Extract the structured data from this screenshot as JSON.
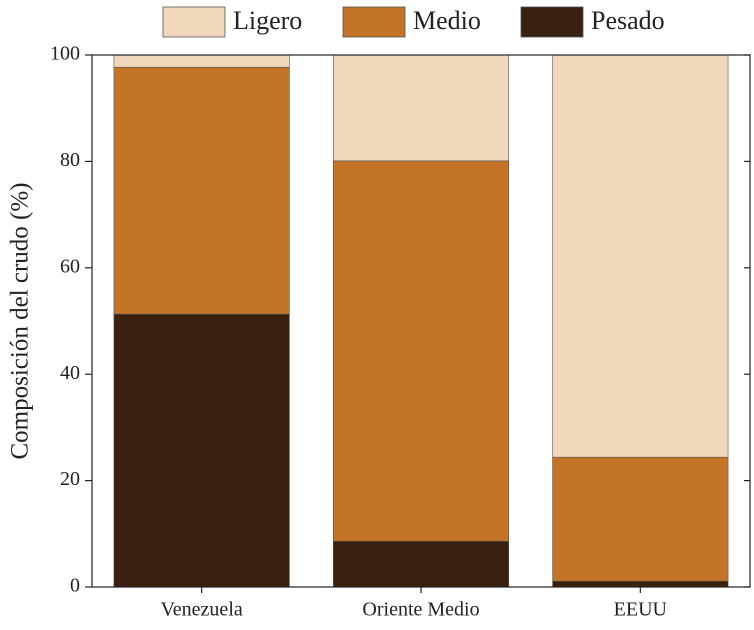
{
  "chart_data": {
    "type": "stacked_bar",
    "y_label": "Composición del crudo (%)",
    "categories": [
      "Venezuela",
      "Oriente Medio",
      "EEUU"
    ],
    "series": [
      {
        "name": "Ligero",
        "color": "#f0d7bc",
        "values": [
          2.3,
          19.9,
          75.6
        ]
      },
      {
        "name": "Medio",
        "color": "#c47427",
        "values": [
          46.4,
          71.5,
          23.3
        ]
      },
      {
        "name": "Pesado",
        "color": "#3a200e",
        "values": [
          51.3,
          8.6,
          1.1
        ]
      }
    ],
    "ylim": [
      0,
      100
    ],
    "yticks": [
      0,
      20,
      40,
      60,
      80,
      100
    ],
    "grid": false
  }
}
